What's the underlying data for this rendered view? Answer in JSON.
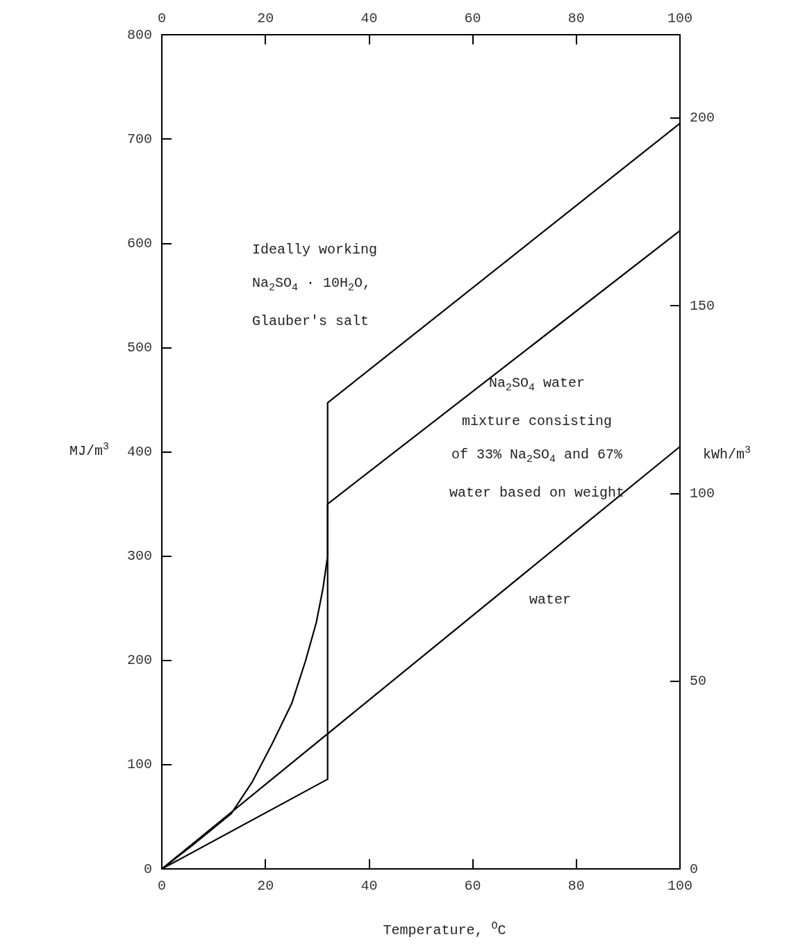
{
  "chart_data": {
    "type": "line",
    "xlabel": "Temperature, $^{O}$C",
    "ylabel": "MJ/m$^{3}$",
    "y2label": "kWh/m$^{3}$",
    "xlim": [
      0,
      100
    ],
    "xticks": [
      0,
      20,
      40,
      60,
      80,
      100
    ],
    "x2lim": [
      0,
      100
    ],
    "x2ticks": [
      0,
      20,
      40,
      60,
      80,
      100
    ],
    "ylim": [
      0,
      800
    ],
    "yticks": [
      0,
      100,
      200,
      300,
      400,
      500,
      600,
      700,
      800
    ],
    "y2lim": [
      0,
      222.2
    ],
    "y2ticks": [
      0,
      50,
      100,
      150,
      200
    ],
    "grid": false,
    "marker": "none",
    "line_style": "solid",
    "series": [
      {
        "color": "#000000",
        "x": [
          0,
          32,
          32,
          100
        ],
        "values": [
          0,
          86,
          447,
          715
        ]
      },
      {
        "color": "#000000",
        "x": [
          0,
          6,
          13.4,
          17.4,
          21.4,
          25.1,
          27.7,
          29.8,
          31.1,
          32,
          32,
          100
        ],
        "values": [
          0,
          23,
          53,
          83,
          121,
          159,
          199,
          236,
          269,
          300,
          350,
          612
        ]
      },
      {
        "color": "#000000",
        "x": [
          0,
          100
        ],
        "values": [
          0,
          405
        ]
      }
    ],
    "annotations": [
      "Ideally working\nNa$_{2}$SO$_{4}$ · 10H$_{2}$O,\nGlauber's salt",
      "Na$_{2}$SO$_{4}$ water\nmixture consisting\nof 33% Na$_{2}$SO$_{4}$ and 67%\nwater based on weight",
      "water"
    ]
  }
}
